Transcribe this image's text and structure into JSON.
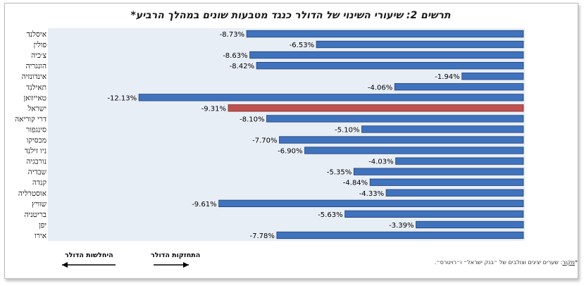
{
  "chart_data": {
    "type": "bar",
    "orientation": "horizontal",
    "title": "תרשים 2: שיעורי השינוי של הדולר כנגד מטבעות שונים במהלך הרביע*",
    "categories": [
      "איסלנד",
      "פולין",
      "צ׳כיה",
      "הונגריה",
      "אינדונזיה",
      "תאילנד",
      "טאייוואן",
      "ישראל",
      "דרי קוריאה",
      "סינגפור",
      "מכסיקו",
      "ניו זילנד",
      "נורבגיה",
      "שבדיה",
      "קנדה",
      "אוסטרליה",
      "שוויץ",
      "בריטניה",
      "יפן",
      "אירו"
    ],
    "values": [
      -8.73,
      -6.53,
      -8.63,
      -8.42,
      -1.94,
      -4.06,
      -12.13,
      -9.31,
      -8.1,
      -5.1,
      -7.7,
      -6.9,
      -4.03,
      -5.35,
      -4.84,
      -4.33,
      -9.61,
      -5.63,
      -3.39,
      -7.78
    ],
    "value_labels": [
      "-8.73%",
      "-6.53%",
      "-8.63%",
      "-8.42%",
      "-1.94%",
      "-4.06%",
      "-12.13%",
      "-9.31%",
      "-8.10%",
      "-5.10%",
      "-7.70%",
      "-6.90%",
      "-4.03%",
      "-5.35%",
      "-4.84%",
      "-4.33%",
      "-9.61%",
      "-5.63%",
      "-3.39%",
      "-7.78%"
    ],
    "xlim": [
      -13,
      0
    ],
    "grid": false,
    "highlight_category": "ישראל",
    "colors": {
      "bar": "#3f73be",
      "bar_edge": "#243f73",
      "highlight": "#c0504d",
      "highlight_edge": "#7f2c2a",
      "plot_bg": "#e8eef6"
    }
  },
  "footer": {
    "source_label": "מקור",
    "source_text": ": שערים יציגים וצולבים של ״בנק ישראל״ ו״רויטרס״."
  },
  "arrows": {
    "strengthening": "התחזקות הדולר",
    "weakening": "היחלשות הדולר"
  }
}
